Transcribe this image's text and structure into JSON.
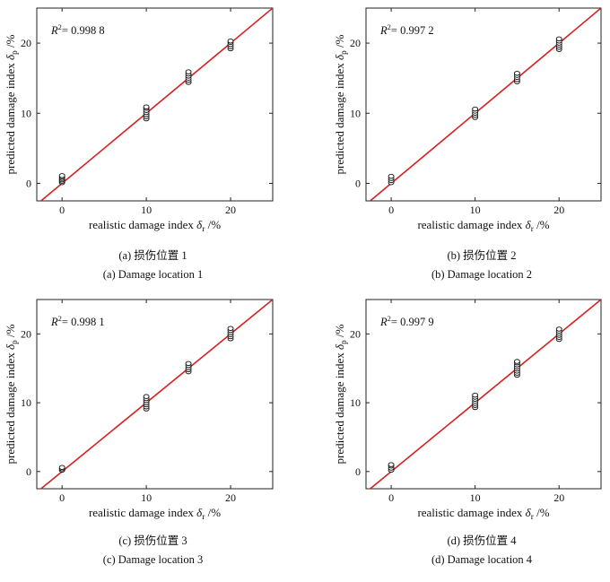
{
  "chart_data": [
    {
      "type": "scatter",
      "r2_label": "R",
      "r2_sup": "2",
      "r2_value": "= 0.998 8",
      "xlabel_text": "realistic damage index",
      "xlabel_symbol": "δ",
      "xlabel_sub": "r",
      "xlabel_unit": "/%",
      "ylabel_text": "predicted damage index",
      "ylabel_symbol": "δ",
      "ylabel_sub": "p",
      "ylabel_unit": "/%",
      "xlim": [
        -3,
        25
      ],
      "ylim": [
        -2.5,
        25
      ],
      "x_ticks": [
        0,
        10,
        20
      ],
      "y_ticks": [
        0,
        10,
        20
      ],
      "fit_line": {
        "slope": 1,
        "intercept": 0,
        "color": "#d62020"
      },
      "groups": [
        {
          "x": 0,
          "y": [
            0.1,
            0.3,
            0.5,
            0.7,
            0.9,
            1.1
          ]
        },
        {
          "x": 10,
          "y": [
            9.2,
            9.5,
            9.8,
            10.1,
            10.4,
            10.7,
            10.9
          ]
        },
        {
          "x": 15,
          "y": [
            14.4,
            14.7,
            15.0,
            15.3,
            15.6,
            15.9
          ]
        },
        {
          "x": 20,
          "y": [
            19.2,
            19.5,
            19.8,
            20.1,
            20.3
          ]
        }
      ],
      "caption_cn": "(a) 损伤位置 1",
      "caption_en": "(a) Damage location 1"
    },
    {
      "type": "scatter",
      "r2_label": "R",
      "r2_sup": "2",
      "r2_value": "= 0.997 2",
      "xlabel_text": "realistic damage index",
      "xlabel_symbol": "δ",
      "xlabel_sub": "r",
      "xlabel_unit": "/%",
      "ylabel_text": "predicted damage index",
      "ylabel_symbol": "δ",
      "ylabel_sub": "p",
      "ylabel_unit": "/%",
      "xlim": [
        -3,
        25
      ],
      "ylim": [
        -2.5,
        25
      ],
      "x_ticks": [
        0,
        10,
        20
      ],
      "y_ticks": [
        0,
        10,
        20
      ],
      "fit_line": {
        "slope": 1,
        "intercept": 0,
        "color": "#d62020"
      },
      "groups": [
        {
          "x": 0,
          "y": [
            0.1,
            0.4,
            0.7,
            1.0
          ]
        },
        {
          "x": 10,
          "y": [
            9.4,
            9.7,
            10.0,
            10.3,
            10.6
          ]
        },
        {
          "x": 15,
          "y": [
            14.5,
            14.8,
            15.1,
            15.4,
            15.7
          ]
        },
        {
          "x": 20,
          "y": [
            19.1,
            19.4,
            19.7,
            20.0,
            20.3,
            20.6
          ]
        }
      ],
      "caption_cn": "(b) 损伤位置 2",
      "caption_en": "(b) Damage location 2"
    },
    {
      "type": "scatter",
      "r2_label": "R",
      "r2_sup": "2",
      "r2_value": "= 0.998 1",
      "xlabel_text": "realistic damage index",
      "xlabel_symbol": "δ",
      "xlabel_sub": "r",
      "xlabel_unit": "/%",
      "ylabel_text": "predicted damage index",
      "ylabel_symbol": "δ",
      "ylabel_sub": "p",
      "ylabel_unit": "/%",
      "xlim": [
        -3,
        25
      ],
      "ylim": [
        -2.5,
        25
      ],
      "x_ticks": [
        0,
        10,
        20
      ],
      "y_ticks": [
        0,
        10,
        20
      ],
      "fit_line": {
        "slope": 1,
        "intercept": 0,
        "color": "#d62020"
      },
      "groups": [
        {
          "x": 0,
          "y": [
            0.2,
            0.4,
            0.6
          ]
        },
        {
          "x": 10,
          "y": [
            9.1,
            9.4,
            9.7,
            10.0,
            10.3,
            10.6,
            10.9
          ]
        },
        {
          "x": 15,
          "y": [
            14.5,
            14.8,
            15.1,
            15.4,
            15.7
          ]
        },
        {
          "x": 20,
          "y": [
            19.3,
            19.6,
            19.9,
            20.2,
            20.5,
            20.8
          ]
        }
      ],
      "caption_cn": "(c) 损伤位置 3",
      "caption_en": "(c) Damage location 3"
    },
    {
      "type": "scatter",
      "r2_label": "R",
      "r2_sup": "2",
      "r2_value": "= 0.997 9",
      "xlabel_text": "realistic damage index",
      "xlabel_symbol": "δ",
      "xlabel_sub": "r",
      "xlabel_unit": "/%",
      "ylabel_text": "predicted damage index",
      "ylabel_symbol": "δ",
      "ylabel_sub": "p",
      "ylabel_unit": "/%",
      "xlim": [
        -3,
        25
      ],
      "ylim": [
        -2.5,
        25
      ],
      "x_ticks": [
        0,
        10,
        20
      ],
      "y_ticks": [
        0,
        10,
        20
      ],
      "fit_line": {
        "slope": 1,
        "intercept": 0,
        "color": "#d62020"
      },
      "groups": [
        {
          "x": 0,
          "y": [
            0.2,
            0.5,
            0.8,
            1.0
          ]
        },
        {
          "x": 10,
          "y": [
            9.3,
            9.6,
            9.9,
            10.2,
            10.5,
            10.8,
            11.1
          ]
        },
        {
          "x": 15,
          "y": [
            14.0,
            14.3,
            14.6,
            14.9,
            15.2,
            15.5,
            15.8,
            16.0
          ]
        },
        {
          "x": 20,
          "y": [
            19.2,
            19.5,
            19.8,
            20.1,
            20.4,
            20.7
          ]
        }
      ],
      "caption_cn": "(d) 损伤位置 4",
      "caption_en": "(d) Damage location 4"
    }
  ]
}
